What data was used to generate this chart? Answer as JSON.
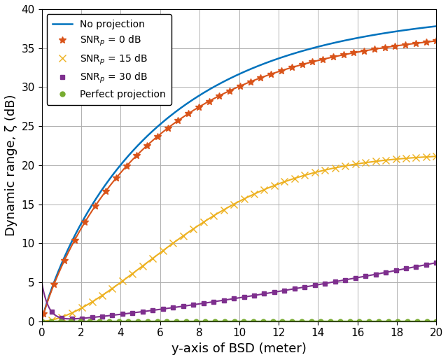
{
  "xlabel": "y-axis of BSD (meter)",
  "ylabel": "Dynamic range, ζ (dB)",
  "xlim": [
    0,
    20
  ],
  "ylim": [
    0,
    40
  ],
  "xticks": [
    0,
    2,
    4,
    6,
    8,
    10,
    12,
    14,
    16,
    18,
    20
  ],
  "yticks": [
    0,
    5,
    10,
    15,
    20,
    25,
    30,
    35,
    40
  ],
  "lines": [
    {
      "label": "No projection",
      "color": "#0072BD",
      "marker": "none",
      "lw": 1.8
    },
    {
      "label": "SNR$_p$ = 0 dB",
      "color": "#D95319",
      "marker": "*",
      "lw": 1.5,
      "ms": 7
    },
    {
      "label": "SNR$_p$ = 15 dB",
      "color": "#EDB120",
      "marker": "x",
      "lw": 1.5,
      "ms": 7
    },
    {
      "label": "SNR$_p$ = 30 dB",
      "color": "#7E2F8E",
      "marker": "s",
      "lw": 1.5,
      "ms": 5
    },
    {
      "label": "Perfect projection",
      "color": "#77AC30",
      "marker": "o",
      "lw": 1.5,
      "ms": 5
    }
  ],
  "legend_loc": "upper left",
  "figsize": [
    6.4,
    5.14
  ],
  "dpi": 100
}
